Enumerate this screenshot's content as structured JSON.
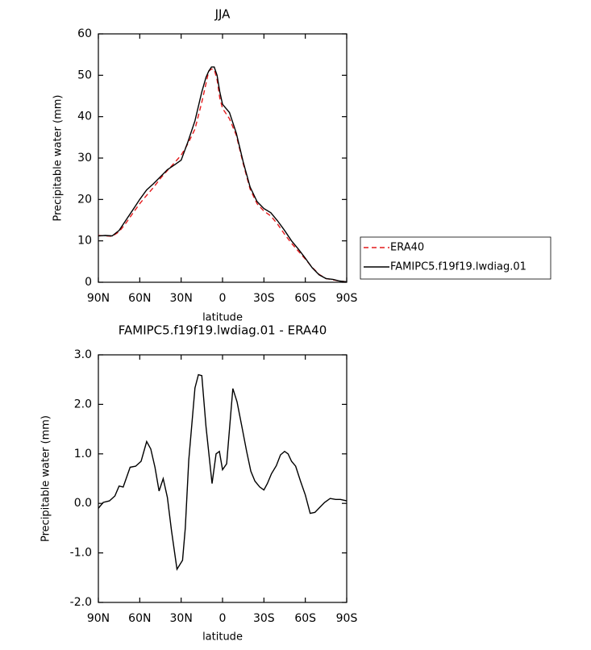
{
  "chart_data": [
    {
      "type": "line",
      "title": "JJA",
      "xlabel": "latitude",
      "ylabel": "Precipitable water (mm)",
      "xlim": [
        90,
        -90
      ],
      "xticks": [
        {
          "value": 90,
          "label": "90N"
        },
        {
          "value": 60,
          "label": "60N"
        },
        {
          "value": 30,
          "label": "30N"
        },
        0,
        {
          "value": -30,
          "label": "30S"
        },
        {
          "value": -60,
          "label": "60S"
        },
        {
          "value": -90,
          "label": "90S"
        }
      ],
      "ylim": [
        0,
        60
      ],
      "yticks": [
        0,
        10,
        20,
        30,
        40,
        50,
        60
      ],
      "legend": "right",
      "x": [
        90,
        85,
        80,
        75,
        70,
        65,
        60,
        55,
        50,
        45,
        40,
        35,
        30,
        25,
        20,
        15,
        12,
        10,
        8,
        6,
        4,
        2,
        0,
        -5,
        -10,
        -15,
        -20,
        -25,
        -30,
        -35,
        -40,
        -45,
        -50,
        -55,
        -60,
        -65,
        -70,
        -75,
        -80,
        -85,
        -90
      ],
      "series": [
        {
          "name": "ERA40",
          "color": "#e41a1c",
          "linestyle": "dashed",
          "values": [
            11.3,
            11.2,
            11.1,
            12.2,
            14.3,
            16.7,
            19,
            21,
            22.9,
            25.1,
            27,
            28.8,
            30.7,
            33.5,
            37,
            43.5,
            48,
            51,
            51.5,
            51.4,
            49,
            44.5,
            42,
            39.5,
            35.5,
            28.6,
            22.5,
            19,
            17.2,
            16,
            14,
            11.6,
            9.4,
            7.5,
            5.6,
            3.6,
            1.9,
            0.9,
            0.6,
            0.3,
            0.1
          ]
        },
        {
          "name": "FAMIPC5.f19f19.lwdiag.01",
          "color": "#000000",
          "linestyle": "solid",
          "values": [
            11.2,
            11.3,
            11.2,
            12.5,
            15,
            17.5,
            20,
            22.3,
            23.8,
            25.5,
            27.2,
            28.3,
            29.5,
            34,
            39,
            46,
            49.5,
            51,
            52,
            52,
            50,
            46,
            43,
            41,
            36,
            29,
            23,
            19.5,
            17.8,
            16.8,
            14.8,
            12.5,
            10,
            8,
            5.8,
            3.5,
            1.8,
            0.9,
            0.7,
            0.3,
            0.1
          ]
        }
      ]
    },
    {
      "type": "line",
      "title": "FAMIPC5.f19f19.lwdiag.01 - ERA40",
      "xlabel": "latitude",
      "ylabel": "Precipitable water (mm)",
      "xlim": [
        90,
        -90
      ],
      "xticks": [
        {
          "value": 90,
          "label": "90N"
        },
        {
          "value": 60,
          "label": "60N"
        },
        {
          "value": 30,
          "label": "30N"
        },
        0,
        {
          "value": -30,
          "label": "30S"
        },
        {
          "value": -60,
          "label": "60S"
        },
        {
          "value": -90,
          "label": "90S"
        }
      ],
      "ylim": [
        -2,
        3
      ],
      "yticks": [
        {
          "value": -2,
          "label": "-2.0"
        },
        {
          "value": -1,
          "label": "-1.0"
        },
        {
          "value": 0,
          "label": "0.0"
        },
        {
          "value": 1,
          "label": "1.0"
        },
        {
          "value": 2,
          "label": "2.0"
        },
        {
          "value": 3,
          "label": "3.0"
        }
      ],
      "x": [
        90,
        86.5,
        82,
        78,
        75,
        72,
        67,
        63,
        59,
        55,
        52,
        49,
        46,
        43,
        40,
        37,
        33,
        29,
        27,
        24.5,
        20,
        17.5,
        15,
        12,
        7.6,
        4.7,
        2.3,
        0,
        -3,
        -6,
        -7.5,
        -10.5,
        -14,
        -17.5,
        -20.5,
        -23.5,
        -27,
        -30,
        -32.5,
        -35.5,
        -39,
        -42,
        -45,
        -47.5,
        -50,
        -53,
        -56.5,
        -60,
        -63.5,
        -67,
        -70.5,
        -74,
        -78,
        -82,
        -85.5,
        -90
      ],
      "series": [
        {
          "color": "#000000",
          "linestyle": "solid",
          "values": [
            -0.1,
            0.02,
            0.05,
            0.15,
            0.35,
            0.33,
            0.73,
            0.75,
            0.85,
            1.25,
            1.1,
            0.73,
            0.25,
            0.5,
            0.12,
            -0.55,
            -1.33,
            -1.15,
            -0.5,
            0.87,
            2.33,
            2.6,
            2.58,
            1.55,
            0.4,
            1.0,
            1.05,
            0.68,
            0.8,
            1.83,
            2.32,
            2.05,
            1.55,
            1.05,
            0.65,
            0.45,
            0.33,
            0.27,
            0.4,
            0.6,
            0.76,
            0.98,
            1.05,
            1.0,
            0.85,
            0.75,
            0.45,
            0.17,
            -0.2,
            -0.18,
            -0.08,
            0.02,
            0.1,
            0.08,
            0.08,
            0.05
          ]
        }
      ]
    }
  ]
}
